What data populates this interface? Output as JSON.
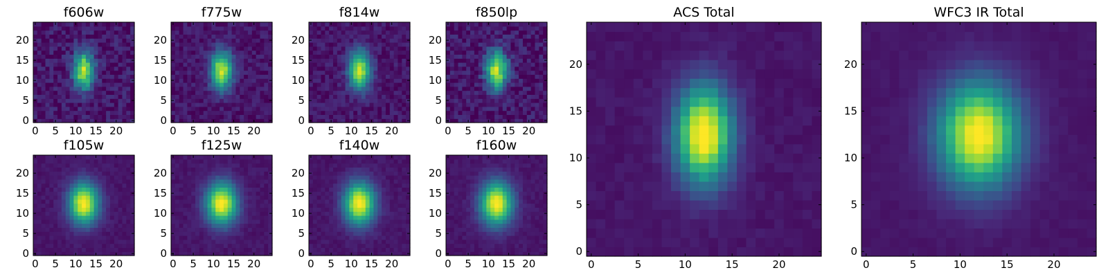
{
  "chart_data": {
    "type": "heatmap",
    "colormap": "viridis",
    "grid": false,
    "image_size": [
      25,
      25
    ],
    "source_center": [
      12,
      12.5
    ],
    "panels": [
      {
        "title": "f606w",
        "xticks": [
          0,
          5,
          10,
          15,
          20
        ],
        "yticks": [
          0,
          5,
          10,
          15,
          20
        ],
        "xlim": [
          0,
          25
        ],
        "ylim": [
          0,
          25
        ],
        "sigma_x": 1.8,
        "sigma_y": 3.3,
        "peak": 0.85,
        "noise": 0.1
      },
      {
        "title": "f775w",
        "xticks": [
          0,
          5,
          10,
          15,
          20
        ],
        "yticks": [
          0,
          5,
          10,
          15,
          20
        ],
        "xlim": [
          0,
          25
        ],
        "ylim": [
          0,
          25
        ],
        "sigma_x": 1.9,
        "sigma_y": 3.4,
        "peak": 0.85,
        "noise": 0.07
      },
      {
        "title": "f814w",
        "xticks": [
          0,
          5,
          10,
          15,
          20
        ],
        "yticks": [
          0,
          5,
          10,
          15,
          20
        ],
        "xlim": [
          0,
          25
        ],
        "ylim": [
          0,
          25
        ],
        "sigma_x": 1.9,
        "sigma_y": 3.4,
        "peak": 0.85,
        "noise": 0.07
      },
      {
        "title": "f850lp",
        "xticks": [
          0,
          5,
          10,
          15,
          20
        ],
        "yticks": [
          0,
          5,
          10,
          15,
          20
        ],
        "xlim": [
          0,
          25
        ],
        "ylim": [
          0,
          25
        ],
        "sigma_x": 1.9,
        "sigma_y": 3.4,
        "peak": 0.85,
        "noise": 0.1
      },
      {
        "title": "f105w",
        "xticks": [
          0,
          5,
          10,
          15,
          20
        ],
        "yticks": [
          0,
          5,
          10,
          15,
          20
        ],
        "xlim": [
          0,
          25
        ],
        "ylim": [
          0,
          25
        ],
        "sigma_x": 2.6,
        "sigma_y": 3.6,
        "peak": 0.95,
        "noise": 0.03
      },
      {
        "title": "f125w",
        "xticks": [
          0,
          5,
          10,
          15,
          20
        ],
        "yticks": [
          0,
          5,
          10,
          15,
          20
        ],
        "xlim": [
          0,
          25
        ],
        "ylim": [
          0,
          25
        ],
        "sigma_x": 2.7,
        "sigma_y": 3.7,
        "peak": 0.95,
        "noise": 0.03
      },
      {
        "title": "f140w",
        "xticks": [
          0,
          5,
          10,
          15,
          20
        ],
        "yticks": [
          0,
          5,
          10,
          15,
          20
        ],
        "xlim": [
          0,
          25
        ],
        "ylim": [
          0,
          25
        ],
        "sigma_x": 2.7,
        "sigma_y": 3.7,
        "peak": 0.95,
        "noise": 0.03
      },
      {
        "title": "f160w",
        "xticks": [
          0,
          5,
          10,
          15,
          20
        ],
        "yticks": [
          0,
          5,
          10,
          15,
          20
        ],
        "xlim": [
          0,
          25
        ],
        "ylim": [
          0,
          25
        ],
        "sigma_x": 2.8,
        "sigma_y": 3.8,
        "peak": 0.95,
        "noise": 0.03
      },
      {
        "title": "ACS Total",
        "xticks": [
          0,
          5,
          10,
          15,
          20
        ],
        "yticks": [
          0,
          5,
          10,
          15,
          20
        ],
        "xlim": [
          0,
          25
        ],
        "ylim": [
          0,
          25
        ],
        "sigma_x": 2.1,
        "sigma_y": 3.6,
        "peak": 1.0,
        "noise": 0.025
      },
      {
        "title": "WFC3 IR Total",
        "xticks": [
          0,
          5,
          10,
          15,
          20
        ],
        "yticks": [
          0,
          5,
          10,
          15,
          20
        ],
        "xlim": [
          0,
          25
        ],
        "ylim": [
          0,
          25
        ],
        "sigma_x": 3.0,
        "sigma_y": 3.9,
        "peak": 0.97,
        "noise": 0.015
      }
    ]
  }
}
